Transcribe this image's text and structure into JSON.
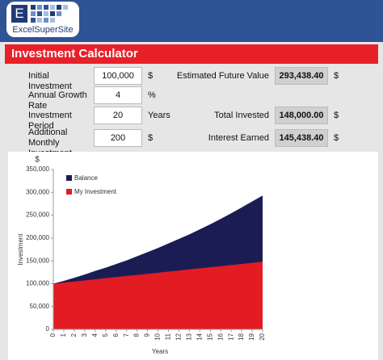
{
  "logo": {
    "letter": "E",
    "text": "ExcelSuperSite"
  },
  "title": "Investment Calculator",
  "inputs": [
    {
      "label": "Initial Investment",
      "value": "100,000",
      "unit": "$"
    },
    {
      "label": "Annual Growth Rate",
      "value": "4",
      "unit": "%"
    },
    {
      "label": "Investment Period",
      "value": "20",
      "unit": "Years"
    },
    {
      "label": "Additional Monthly Investment",
      "value": "200",
      "unit": "$"
    }
  ],
  "outputs": [
    {
      "label": "Estimated Future Value",
      "value": "293,438.40",
      "unit": "$"
    },
    {
      "label": "Total Invested",
      "value": "148,000.00",
      "unit": "$"
    },
    {
      "label": "Interest Earned",
      "value": "145,438.40",
      "unit": "$"
    }
  ],
  "chart_data": {
    "type": "area",
    "y_unit": "$",
    "ylabel": "Investment",
    "xlabel": "Years",
    "x": [
      0,
      1,
      2,
      3,
      4,
      5,
      6,
      7,
      8,
      9,
      10,
      11,
      12,
      13,
      14,
      15,
      16,
      17,
      18,
      19,
      20
    ],
    "xlim": [
      0,
      20
    ],
    "ylim": [
      0,
      350000
    ],
    "yticks": [
      {
        "value": 0,
        "label": "0"
      },
      {
        "value": 50000,
        "label": "50,000"
      },
      {
        "value": 100000,
        "label": "100,000"
      },
      {
        "value": 150000,
        "label": "150,000"
      },
      {
        "value": 200000,
        "label": "200,000"
      },
      {
        "value": 250000,
        "label": "250,000"
      },
      {
        "value": 300000,
        "label": "300,000"
      },
      {
        "value": 350000,
        "label": "350,000"
      }
    ],
    "series": [
      {
        "name": "Balance",
        "color": "#1c1c55",
        "values": [
          100000,
          106000,
          113000,
          120000,
          128000,
          135000,
          143000,
          151000,
          160000,
          169000,
          178000,
          188000,
          198000,
          208000,
          219000,
          230000,
          242000,
          254000,
          267000,
          280000,
          293000
        ]
      },
      {
        "name": "My Investment",
        "color": "#e31b23",
        "values": [
          100000,
          102400,
          104800,
          107200,
          109600,
          112000,
          114400,
          116800,
          119200,
          121600,
          124000,
          126400,
          128800,
          131200,
          133600,
          136000,
          138400,
          140800,
          143200,
          145600,
          148000
        ]
      }
    ]
  }
}
